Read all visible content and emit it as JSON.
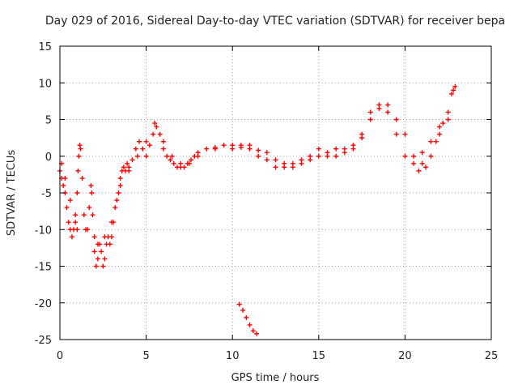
{
  "chart_data": {
    "type": "scatter",
    "title": "Day 029 of 2016, Sidereal Day-to-day VTEC variation (SDTVAR) for receiver bepa",
    "xlabel": "GPS time / hours",
    "ylabel": "SDTVAR / TECUs",
    "xlim": [
      0,
      25
    ],
    "ylim": [
      -25,
      15
    ],
    "xticks": [
      0,
      5,
      10,
      15,
      20,
      25
    ],
    "yticks": [
      -25,
      -20,
      -15,
      -10,
      -5,
      0,
      5,
      10,
      15
    ],
    "grid": true,
    "marker": "+",
    "series_color": "#ff0000",
    "series": [
      {
        "name": "SDTVAR",
        "points": [
          [
            0.0,
            -2
          ],
          [
            0.1,
            -3
          ],
          [
            0.2,
            -4
          ],
          [
            0.3,
            -5
          ],
          [
            0.4,
            -7
          ],
          [
            0.5,
            -9
          ],
          [
            0.6,
            -10
          ],
          [
            0.7,
            -11
          ],
          [
            0.8,
            -10
          ],
          [
            0.9,
            -8
          ],
          [
            1.0,
            -5
          ],
          [
            1.05,
            -2
          ],
          [
            1.1,
            0
          ],
          [
            1.15,
            1.5
          ],
          [
            1.2,
            1
          ],
          [
            1.3,
            -3
          ],
          [
            1.4,
            -8
          ],
          [
            1.5,
            -10
          ],
          [
            1.6,
            -10
          ],
          [
            1.7,
            -7
          ],
          [
            1.8,
            -4
          ],
          [
            1.85,
            -5
          ],
          [
            1.9,
            -8
          ],
          [
            2.0,
            -13
          ],
          [
            2.1,
            -15
          ],
          [
            2.2,
            -14
          ],
          [
            2.3,
            -12
          ],
          [
            2.4,
            -13
          ],
          [
            2.5,
            -15
          ],
          [
            2.6,
            -14
          ],
          [
            2.7,
            -12
          ],
          [
            2.8,
            -11
          ],
          [
            2.9,
            -12
          ],
          [
            3.0,
            -11
          ],
          [
            3.1,
            -9
          ],
          [
            3.2,
            -7
          ],
          [
            3.3,
            -6
          ],
          [
            3.4,
            -5
          ],
          [
            3.5,
            -4
          ],
          [
            3.6,
            -2
          ],
          [
            3.7,
            -1.5
          ],
          [
            3.8,
            -2
          ],
          [
            3.9,
            -1
          ],
          [
            4.0,
            -1.5
          ],
          [
            4.2,
            -0.5
          ],
          [
            4.4,
            1
          ],
          [
            4.6,
            2
          ],
          [
            4.8,
            1
          ],
          [
            5.0,
            0
          ],
          [
            5.2,
            1.5
          ],
          [
            5.4,
            3
          ],
          [
            5.6,
            4
          ],
          [
            5.8,
            3
          ],
          [
            6.0,
            1
          ],
          [
            6.2,
            0
          ],
          [
            6.4,
            -0.5
          ],
          [
            6.6,
            -1
          ],
          [
            6.8,
            -1.5
          ],
          [
            7.0,
            -1
          ],
          [
            7.2,
            -1.5
          ],
          [
            7.4,
            -1
          ],
          [
            7.6,
            -0.5
          ],
          [
            7.8,
            0
          ],
          [
            8.0,
            0.5
          ],
          [
            8.5,
            1
          ],
          [
            9.0,
            1.2
          ],
          [
            9.5,
            1.5
          ],
          [
            10.0,
            1.5
          ],
          [
            10.5,
            1.2
          ],
          [
            11.0,
            1
          ],
          [
            11.5,
            0.8
          ],
          [
            12.0,
            0.5
          ],
          [
            12.5,
            -0.5
          ],
          [
            13.0,
            -1
          ],
          [
            13.5,
            -1
          ],
          [
            14.0,
            -0.5
          ],
          [
            14.5,
            0
          ],
          [
            15.0,
            1
          ],
          [
            15.5,
            0.5
          ],
          [
            16.0,
            1
          ],
          [
            16.5,
            0.5
          ],
          [
            17.0,
            1.5
          ],
          [
            17.5,
            3
          ],
          [
            18.0,
            5
          ],
          [
            18.5,
            6.5
          ],
          [
            19.0,
            7
          ],
          [
            19.5,
            5
          ],
          [
            20.0,
            3
          ],
          [
            20.5,
            0
          ],
          [
            20.8,
            -2
          ],
          [
            21.0,
            -1
          ],
          [
            21.2,
            -1.5
          ],
          [
            21.5,
            0
          ],
          [
            21.8,
            2
          ],
          [
            22.0,
            3
          ],
          [
            22.2,
            4.5
          ],
          [
            22.5,
            6
          ],
          [
            22.7,
            8.5
          ],
          [
            22.9,
            9.5
          ],
          [
            0.1,
            -1
          ],
          [
            0.3,
            -3
          ],
          [
            0.6,
            -6
          ],
          [
            0.9,
            -9
          ],
          [
            1.0,
            -10
          ],
          [
            2.0,
            -11
          ],
          [
            2.2,
            -12
          ],
          [
            2.6,
            -11
          ],
          [
            3.0,
            -9
          ],
          [
            3.5,
            -3
          ],
          [
            4.0,
            -2
          ],
          [
            4.5,
            0
          ],
          [
            5.0,
            2
          ],
          [
            5.5,
            4.5
          ],
          [
            6.0,
            2
          ],
          [
            6.5,
            0
          ],
          [
            7.0,
            -1.5
          ],
          [
            7.5,
            -1
          ],
          [
            8.0,
            0
          ],
          [
            9.0,
            1
          ],
          [
            10.0,
            1
          ],
          [
            10.5,
            1.5
          ],
          [
            11.0,
            1.5
          ],
          [
            11.5,
            0
          ],
          [
            12.0,
            -0.5
          ],
          [
            12.5,
            -1.5
          ],
          [
            13.0,
            -1.5
          ],
          [
            13.5,
            -1.5
          ],
          [
            14.0,
            -1
          ],
          [
            14.5,
            -0.5
          ],
          [
            15.0,
            0
          ],
          [
            15.5,
            0
          ],
          [
            16.0,
            0
          ],
          [
            16.5,
            1
          ],
          [
            17.0,
            1
          ],
          [
            17.5,
            2.5
          ],
          [
            18.0,
            6
          ],
          [
            18.5,
            7
          ],
          [
            19.0,
            6
          ],
          [
            19.5,
            3
          ],
          [
            20.0,
            0
          ],
          [
            20.5,
            -1
          ],
          [
            21.0,
            0.5
          ],
          [
            21.5,
            2
          ],
          [
            22.0,
            4
          ],
          [
            22.5,
            5
          ],
          [
            22.8,
            9
          ],
          [
            10.4,
            -20.2
          ],
          [
            10.6,
            -21
          ],
          [
            10.8,
            -22
          ],
          [
            11.0,
            -23
          ],
          [
            11.2,
            -23.8
          ],
          [
            11.4,
            -24.2
          ]
        ]
      }
    ]
  }
}
